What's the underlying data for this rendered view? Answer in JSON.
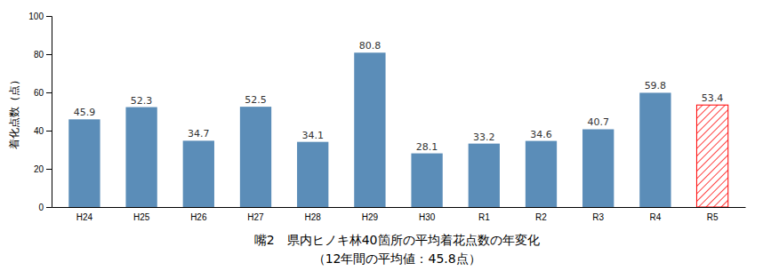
{
  "chart_data": {
    "type": "bar",
    "title": "嘴2　県内ヒノキ林40箇所の平均着花点数の年変化",
    "subtitle": "（12年間の平均値：45.8点）",
    "ylabel": "着化点数（点）",
    "categories": [
      "H24",
      "H25",
      "H26",
      "H27",
      "H28",
      "H29",
      "H30",
      "R1",
      "R2",
      "R3",
      "R4",
      "R5"
    ],
    "values": [
      45.9,
      52.3,
      34.7,
      52.5,
      34.1,
      80.8,
      28.1,
      33.2,
      34.6,
      40.7,
      59.8,
      53.4
    ],
    "colors": [
      "#5B8DB8",
      "#5B8DB8",
      "#5B8DB8",
      "#5B8DB8",
      "#5B8DB8",
      "#5B8DB8",
      "#5B8DB8",
      "#5B8DB8",
      "#5B8DB8",
      "#5B8DB8",
      "#5B8DB8",
      "#FF0000"
    ],
    "ylim": [
      0,
      100
    ],
    "yticks": [
      0,
      20,
      40,
      60,
      80,
      100
    ],
    "grid": false,
    "data_labels": true
  }
}
